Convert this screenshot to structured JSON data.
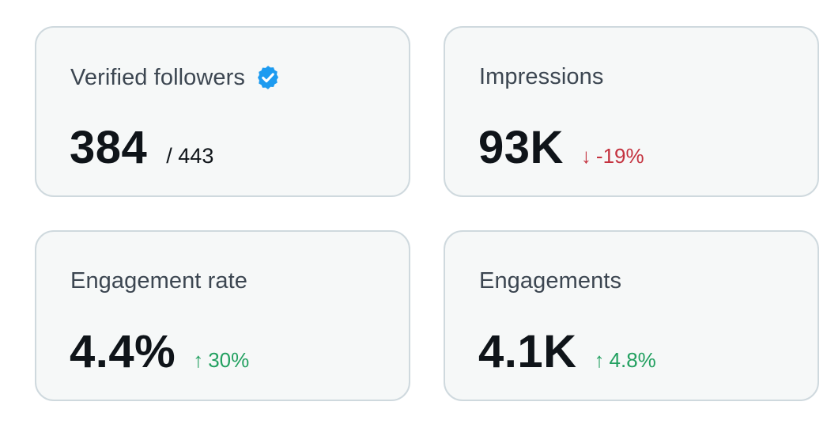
{
  "cards": [
    {
      "label": "Verified followers",
      "icon": "verified-badge-icon",
      "value": "384",
      "secondary": "/ 443"
    },
    {
      "label": "Impressions",
      "value": "93K",
      "change_arrow": "↓",
      "change": "-19%",
      "change_color": "#c4323f"
    },
    {
      "label": "Engagement rate",
      "value": "4.4%",
      "change_arrow": "↑",
      "change": "30%",
      "change_color": "#22a060"
    },
    {
      "label": "Engagements",
      "value": "4.1K",
      "change_arrow": "↑",
      "change": "4.8%",
      "change_color": "#22a060"
    }
  ],
  "colors": {
    "card_background": "#f6f8f8",
    "card_border": "#cfd9de",
    "badge_blue": "#1d9bf0"
  }
}
